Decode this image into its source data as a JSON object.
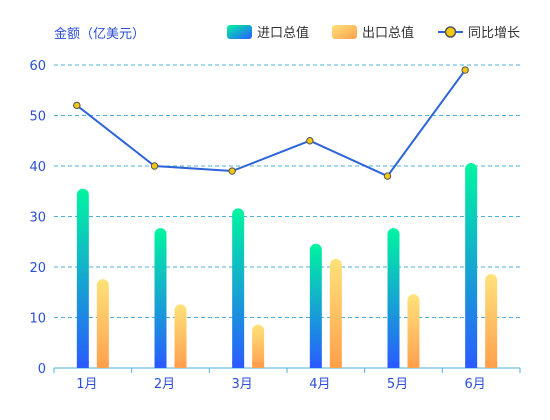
{
  "chart_data": {
    "type": "bar",
    "title": "",
    "ylabel": "金额（亿美元）",
    "xlabel": "",
    "categories": [
      "1月",
      "2月",
      "3月",
      "4月",
      "5月",
      "6月"
    ],
    "ylim": [
      0,
      60
    ],
    "yticks": [
      0,
      10,
      20,
      30,
      40,
      50,
      60
    ],
    "grid": true,
    "legend_position": "top-right",
    "series": [
      {
        "name": "进口总值",
        "type": "bar",
        "values": [
          35.5,
          27.7,
          31.6,
          24.6,
          27.7,
          40.6
        ]
      },
      {
        "name": "出口总值",
        "type": "bar",
        "values": [
          17.6,
          12.6,
          8.6,
          21.6,
          14.6,
          18.6
        ]
      },
      {
        "name": "同比增长",
        "type": "line",
        "values": [
          52,
          40,
          39,
          45,
          38,
          59
        ]
      }
    ]
  },
  "colors": {
    "axis_text": "#2b4fd8",
    "grid": "#4fb3d9",
    "import_top": "#00f5a0",
    "import_bottom": "#2a5bff",
    "export_top": "#ffe27a",
    "export_bottom": "#ffa04d",
    "line": "#2d64d8",
    "marker_fill": "#f2c811",
    "marker_stroke": "#555555"
  }
}
